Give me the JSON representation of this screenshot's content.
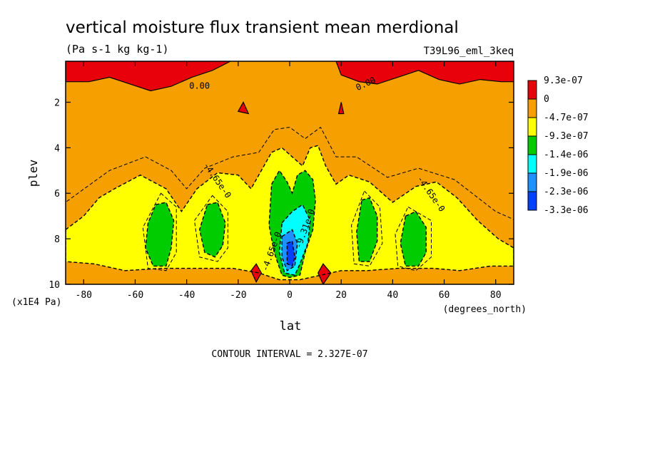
{
  "chart_data": {
    "type": "heatmap",
    "title": "vertical moisture flux transient mean merdional",
    "units": "(Pa s-1 kg kg-1)",
    "dataset": "T39L96_eml_3keq",
    "xlabel": "lat",
    "xunits": "(degrees_north)",
    "ylabel": "plev",
    "yunits": "(x1E4 Pa)",
    "xlim": [
      -87,
      87
    ],
    "ylim": [
      10,
      0.2
    ],
    "x_ticks": [
      -80,
      -60,
      -40,
      -20,
      0,
      20,
      40,
      60,
      80
    ],
    "x_tick_labels": [
      "-80",
      "-60",
      "-40",
      "-20",
      "0",
      "20",
      "40",
      "60",
      "80"
    ],
    "y_ticks": [
      2,
      4,
      6,
      8,
      10
    ],
    "y_tick_labels": [
      "2",
      "4",
      "6",
      "8",
      "10"
    ],
    "contour_interval": "CONTOUR INTERVAL = 2.327E-07",
    "contour_labels": [
      "0.00",
      "0.00",
      "-4.65e-0",
      "-4.65e-0",
      "-9.31e-0",
      "-4.65e-0"
    ],
    "colorbar": {
      "labels": [
        "9.3e-07",
        "0",
        "-4.7e-07",
        "-9.3e-07",
        "-1.4e-06",
        "-1.9e-06",
        "-2.3e-06",
        "-3.3e-06"
      ],
      "colors": [
        "#e8000b",
        "#f5a000",
        "#ffff00",
        "#00cc00",
        "#00ffff",
        "#1e90ff",
        "#0040ff"
      ]
    },
    "regions": [
      {
        "level": "positive",
        "color": "#e8000b",
        "points": [
          [
            -87,
            0.2
          ],
          [
            -87,
            1.1
          ],
          [
            -78,
            1.1
          ],
          [
            -70,
            0.9
          ],
          [
            -62,
            1.2
          ],
          [
            -54,
            1.5
          ],
          [
            -46,
            1.3
          ],
          [
            -38,
            0.9
          ],
          [
            -30,
            0.6
          ],
          [
            -23,
            0.2
          ]
        ]
      },
      {
        "level": "positive",
        "color": "#e8000b",
        "points": [
          [
            18,
            0.2
          ],
          [
            20,
            0.8
          ],
          [
            27,
            1.1
          ],
          [
            34,
            1.2
          ],
          [
            42,
            0.9
          ],
          [
            50,
            0.6
          ],
          [
            58,
            1.0
          ],
          [
            66,
            1.2
          ],
          [
            74,
            1.0
          ],
          [
            82,
            1.1
          ],
          [
            87,
            1.1
          ],
          [
            87,
            0.2
          ]
        ]
      },
      {
        "level": "positive",
        "color": "#e8000b",
        "points": [
          [
            -20,
            2.4
          ],
          [
            -18,
            2.0
          ],
          [
            -16,
            2.5
          ]
        ]
      },
      {
        "level": "positive",
        "color": "#e8000b",
        "points": [
          [
            19,
            2.5
          ],
          [
            20,
            2.0
          ],
          [
            21,
            2.5
          ]
        ]
      },
      {
        "level": "-4.7e-07",
        "color": "#ffff00",
        "points": [
          [
            -87,
            7.6
          ],
          [
            -80,
            7.0
          ],
          [
            -74,
            6.2
          ],
          [
            -68,
            5.8
          ],
          [
            -58,
            5.2
          ],
          [
            -48,
            5.8
          ],
          [
            -42,
            6.8
          ],
          [
            -36,
            5.8
          ],
          [
            -28,
            5.1
          ],
          [
            -20,
            5.2
          ],
          [
            -15,
            5.8
          ],
          [
            -11,
            5.0
          ],
          [
            -7,
            4.2
          ],
          [
            -3,
            4.0
          ],
          [
            1,
            4.4
          ],
          [
            5,
            4.8
          ],
          [
            8,
            4.0
          ],
          [
            11,
            3.9
          ],
          [
            14,
            4.8
          ],
          [
            18,
            5.6
          ],
          [
            23,
            5.2
          ],
          [
            31,
            5.5
          ],
          [
            40,
            6.4
          ],
          [
            49,
            5.7
          ],
          [
            57,
            5.5
          ],
          [
            65,
            6.2
          ],
          [
            73,
            7.2
          ],
          [
            81,
            8.0
          ],
          [
            87,
            8.4
          ],
          [
            87,
            9.2
          ],
          [
            78,
            9.2
          ],
          [
            66,
            9.4
          ],
          [
            56,
            9.3
          ],
          [
            42,
            9.3
          ],
          [
            30,
            9.4
          ],
          [
            20,
            9.4
          ],
          [
            12,
            9.6
          ],
          [
            4,
            9.8
          ],
          [
            -4,
            9.8
          ],
          [
            -12,
            9.5
          ],
          [
            -22,
            9.3
          ],
          [
            -34,
            9.3
          ],
          [
            -50,
            9.3
          ],
          [
            -64,
            9.4
          ],
          [
            -76,
            9.1
          ],
          [
            -87,
            9.0
          ]
        ]
      },
      {
        "level": "-9.3e-07",
        "color": "#00cc00",
        "points": [
          [
            -52,
            6.5
          ],
          [
            -48,
            6.4
          ],
          [
            -45,
            7.2
          ],
          [
            -46,
            8.4
          ],
          [
            -48,
            9.2
          ],
          [
            -53,
            9.2
          ],
          [
            -56,
            8.4
          ],
          [
            -55,
            7.3
          ]
        ]
      },
      {
        "level": "-9.3e-07",
        "color": "#00cc00",
        "points": [
          [
            -32,
            6.5
          ],
          [
            -28,
            6.4
          ],
          [
            -25,
            7.3
          ],
          [
            -26,
            8.3
          ],
          [
            -29,
            8.8
          ],
          [
            -33,
            8.6
          ],
          [
            -35,
            7.6
          ]
        ]
      },
      {
        "level": "-9.3e-07",
        "color": "#00cc00",
        "points": [
          [
            -7,
            5.6
          ],
          [
            -4,
            5.0
          ],
          [
            -1,
            5.5
          ],
          [
            1,
            6.0
          ],
          [
            3,
            5.2
          ],
          [
            6,
            5.0
          ],
          [
            9,
            5.4
          ],
          [
            10,
            6.3
          ],
          [
            9,
            7.6
          ],
          [
            6,
            8.6
          ],
          [
            4,
            9.6
          ],
          [
            0,
            9.7
          ],
          [
            -3,
            9.6
          ],
          [
            -6,
            8.6
          ],
          [
            -8,
            7.4
          ]
        ]
      },
      {
        "level": "-9.3e-07",
        "color": "#00cc00",
        "points": [
          [
            28,
            6.3
          ],
          [
            31,
            6.2
          ],
          [
            34,
            7.0
          ],
          [
            34,
            8.1
          ],
          [
            31,
            9.0
          ],
          [
            27,
            9.0
          ],
          [
            26,
            7.7
          ]
        ]
      },
      {
        "level": "-9.3e-07",
        "color": "#00cc00",
        "points": [
          [
            45,
            7.0
          ],
          [
            49,
            6.8
          ],
          [
            53,
            7.5
          ],
          [
            53,
            8.6
          ],
          [
            50,
            9.2
          ],
          [
            45,
            9.2
          ],
          [
            43,
            8.2
          ]
        ]
      },
      {
        "level": "-1.4e-06",
        "color": "#00ffff",
        "points": [
          [
            -3,
            7.3
          ],
          [
            1,
            6.8
          ],
          [
            5,
            6.5
          ],
          [
            8,
            7.2
          ],
          [
            7,
            8.2
          ],
          [
            4,
            9.1
          ],
          [
            2,
            9.6
          ],
          [
            -2,
            9.5
          ],
          [
            -4,
            8.6
          ]
        ]
      },
      {
        "level": "-1.9e-06",
        "color": "#1e90ff",
        "points": [
          [
            -3,
            7.9
          ],
          [
            1,
            7.6
          ],
          [
            3,
            8.2
          ],
          [
            2,
            9.2
          ],
          [
            -1,
            9.4
          ],
          [
            -3,
            8.8
          ]
        ]
      },
      {
        "level": "-2.3e-06",
        "color": "#0040ff",
        "points": [
          [
            -1,
            8.2
          ],
          [
            1,
            8.1
          ],
          [
            2,
            8.8
          ],
          [
            1,
            9.2
          ],
          [
            -1,
            9.1
          ]
        ]
      },
      {
        "level": "positive",
        "color": "#e8000b",
        "points": [
          [
            -15,
            9.4
          ],
          [
            -13,
            9.1
          ],
          [
            -11,
            9.5
          ],
          [
            -13,
            9.9
          ]
        ]
      },
      {
        "level": "positive",
        "color": "#e8000b",
        "points": [
          [
            11,
            9.5
          ],
          [
            13,
            9.1
          ],
          [
            16,
            9.5
          ],
          [
            13,
            10.0
          ]
        ]
      }
    ]
  }
}
